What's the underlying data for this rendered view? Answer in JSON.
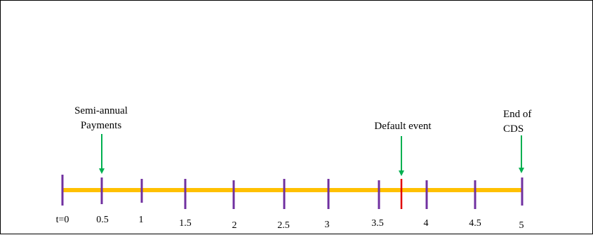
{
  "timeline": {
    "colors": {
      "axis": "#FFC000",
      "tick": "#7030A0",
      "default_tick": "#E00000",
      "arrow": "#00B050",
      "text": "#000000"
    },
    "ticks": [
      {
        "label": "t=0"
      },
      {
        "label": "0.5"
      },
      {
        "label": "1"
      },
      {
        "label": "1.5"
      },
      {
        "label": "2"
      },
      {
        "label": "2.5"
      },
      {
        "label": "3"
      },
      {
        "label": "3.5"
      },
      {
        "label": "4"
      },
      {
        "label": "4.5"
      },
      {
        "label": "5"
      }
    ],
    "annotations": {
      "payments": {
        "line1": "Semi-annual",
        "line2": "Payments"
      },
      "default_event": {
        "label": "Default event"
      },
      "end_of_cds": {
        "line1": "End of",
        "line2": "CDS"
      }
    }
  }
}
